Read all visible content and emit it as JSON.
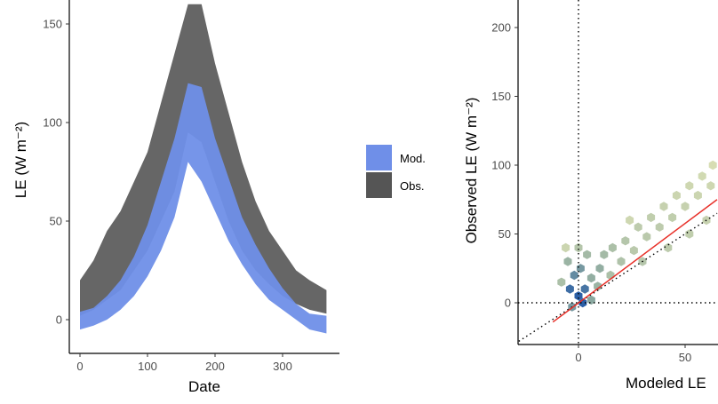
{
  "chart_data": [
    {
      "type": "area",
      "xlabel": "Date",
      "ylabel": "LE (W m⁻²)",
      "xlim": [
        -15,
        385
      ],
      "ylim": [
        -17,
        160
      ],
      "xticks": [
        0,
        100,
        200,
        300
      ],
      "yticks": [
        0,
        50,
        100,
        150
      ],
      "grid": false,
      "legend": {
        "placement": "right",
        "entries": [
          {
            "name": "Mod.",
            "color": "#6f8fe8"
          },
          {
            "name": "Obs.",
            "color": "#555555"
          }
        ]
      },
      "series": [
        {
          "name": "Mod.",
          "color": "#6f8fe8",
          "x": [
            0,
            20,
            40,
            60,
            80,
            100,
            120,
            140,
            160,
            180,
            200,
            220,
            240,
            260,
            280,
            300,
            320,
            340,
            365
          ],
          "low": [
            -5,
            -3,
            0,
            5,
            12,
            22,
            35,
            52,
            80,
            70,
            55,
            40,
            28,
            18,
            10,
            5,
            0,
            -5,
            -7
          ],
          "high": [
            4,
            6,
            12,
            20,
            32,
            48,
            70,
            92,
            120,
            118,
            92,
            72,
            52,
            38,
            26,
            16,
            8,
            3,
            2
          ]
        },
        {
          "name": "Obs.",
          "color": "#555555",
          "x": [
            0,
            20,
            40,
            60,
            80,
            100,
            120,
            140,
            160,
            180,
            200,
            220,
            240,
            260,
            280,
            300,
            320,
            340,
            365
          ],
          "low": [
            2,
            5,
            10,
            15,
            25,
            35,
            50,
            65,
            95,
            90,
            70,
            50,
            35,
            25,
            18,
            12,
            8,
            5,
            3
          ],
          "high": [
            20,
            30,
            45,
            55,
            70,
            85,
            110,
            135,
            160,
            160,
            130,
            105,
            80,
            60,
            45,
            35,
            25,
            20,
            15
          ]
        }
      ]
    },
    {
      "type": "heatmap",
      "xlabel": "Modeled LE",
      "ylabel": "Observed LE (W m⁻²)",
      "xlim": [
        -28,
        65
      ],
      "ylim": [
        -28,
        222
      ],
      "xticks": [
        0,
        50
      ],
      "yticks": [
        0,
        50,
        100,
        150,
        200
      ],
      "grid": false,
      "reference_lines": {
        "vertical_x": 0,
        "horizontal_y": 0,
        "one_to_one": true
      },
      "fit_line": {
        "color": "#e8312a",
        "x": [
          -12,
          65
        ],
        "y": [
          -14,
          75
        ]
      },
      "colors": {
        "low": "#dfe3b5",
        "mid": "#8aa8a0",
        "high": "#2b5fa6"
      },
      "hexbins": [
        {
          "x": -4,
          "y": 10,
          "d": 0.9
        },
        {
          "x": 0,
          "y": 5,
          "d": 1.0
        },
        {
          "x": 2,
          "y": 0,
          "d": 1.0
        },
        {
          "x": 3,
          "y": 10,
          "d": 0.85
        },
        {
          "x": -2,
          "y": 20,
          "d": 0.7
        },
        {
          "x": 1,
          "y": 25,
          "d": 0.6
        },
        {
          "x": -5,
          "y": 30,
          "d": 0.4
        },
        {
          "x": 4,
          "y": 35,
          "d": 0.35
        },
        {
          "x": 0,
          "y": 40,
          "d": 0.25
        },
        {
          "x": -3,
          "y": -3,
          "d": 0.6
        },
        {
          "x": 6,
          "y": 2,
          "d": 0.5
        },
        {
          "x": 6,
          "y": 18,
          "d": 0.45
        },
        {
          "x": 9,
          "y": 12,
          "d": 0.4
        },
        {
          "x": 10,
          "y": 25,
          "d": 0.45
        },
        {
          "x": 12,
          "y": 35,
          "d": 0.35
        },
        {
          "x": 15,
          "y": 20,
          "d": 0.3
        },
        {
          "x": 16,
          "y": 40,
          "d": 0.3
        },
        {
          "x": 20,
          "y": 30,
          "d": 0.28
        },
        {
          "x": 22,
          "y": 45,
          "d": 0.25
        },
        {
          "x": 26,
          "y": 38,
          "d": 0.22
        },
        {
          "x": 28,
          "y": 55,
          "d": 0.2
        },
        {
          "x": 32,
          "y": 48,
          "d": 0.22
        },
        {
          "x": 34,
          "y": 62,
          "d": 0.18
        },
        {
          "x": 38,
          "y": 55,
          "d": 0.2
        },
        {
          "x": 40,
          "y": 70,
          "d": 0.15
        },
        {
          "x": 44,
          "y": 62,
          "d": 0.18
        },
        {
          "x": 46,
          "y": 78,
          "d": 0.12
        },
        {
          "x": 50,
          "y": 70,
          "d": 0.15
        },
        {
          "x": 52,
          "y": 85,
          "d": 0.1
        },
        {
          "x": 56,
          "y": 78,
          "d": 0.12
        },
        {
          "x": 58,
          "y": 92,
          "d": 0.08
        },
        {
          "x": 62,
          "y": 85,
          "d": 0.1
        },
        {
          "x": 60,
          "y": 60,
          "d": 0.15
        },
        {
          "x": 52,
          "y": 50,
          "d": 0.18
        },
        {
          "x": 42,
          "y": 40,
          "d": 0.2
        },
        {
          "x": 30,
          "y": 30,
          "d": 0.25
        },
        {
          "x": -8,
          "y": 15,
          "d": 0.3
        },
        {
          "x": -6,
          "y": 40,
          "d": 0.12
        },
        {
          "x": 24,
          "y": 60,
          "d": 0.1
        },
        {
          "x": 63,
          "y": 100,
          "d": 0.05
        }
      ]
    }
  ]
}
